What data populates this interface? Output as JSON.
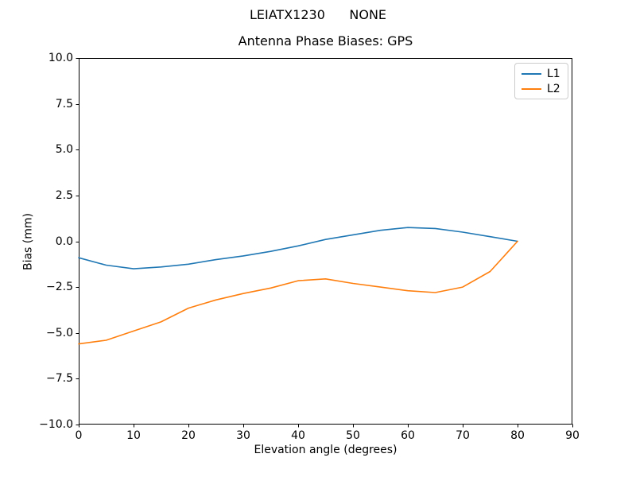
{
  "chart_data": {
    "type": "line",
    "suptitle": "LEIATX1230      NONE",
    "title": "Antenna Phase Biases: GPS",
    "xlabel": "Elevation angle (degrees)",
    "ylabel": "Bias (mm)",
    "xlim": [
      0,
      90
    ],
    "ylim": [
      -10,
      10
    ],
    "grid": false,
    "legend_position": "upper right",
    "xticks": [
      0,
      10,
      20,
      30,
      40,
      50,
      60,
      70,
      80,
      90
    ],
    "xtick_labels": [
      "0",
      "10",
      "20",
      "30",
      "40",
      "50",
      "60",
      "70",
      "80",
      "90"
    ],
    "yticks": [
      10.0,
      7.5,
      5.0,
      2.5,
      0.0,
      -2.5,
      -5.0,
      -7.5,
      -10.0
    ],
    "ytick_labels": [
      "10.0",
      "7.5",
      "5.0",
      "2.5",
      "0.0",
      "−2.5",
      "−5.0",
      "−7.5",
      "−10.0"
    ],
    "x": [
      0,
      5,
      10,
      15,
      20,
      25,
      30,
      35,
      40,
      45,
      50,
      55,
      60,
      65,
      70,
      75,
      80
    ],
    "series": [
      {
        "name": "L1",
        "color": "#1f77b4",
        "values": [
          -0.9,
          -1.3,
          -1.5,
          -1.4,
          -1.25,
          -1.0,
          -0.8,
          -0.55,
          -0.25,
          0.1,
          0.35,
          0.6,
          0.75,
          0.7,
          0.5,
          0.25,
          0.0
        ]
      },
      {
        "name": "L2",
        "color": "#ff7f0e",
        "values": [
          -5.6,
          -5.4,
          -4.9,
          -4.4,
          -3.65,
          -3.2,
          -2.85,
          -2.55,
          -2.15,
          -2.05,
          -2.3,
          -2.5,
          -2.7,
          -2.8,
          -2.5,
          -1.65,
          0.0
        ]
      }
    ],
    "axis_color": "#000000",
    "background_color": "#ffffff"
  }
}
